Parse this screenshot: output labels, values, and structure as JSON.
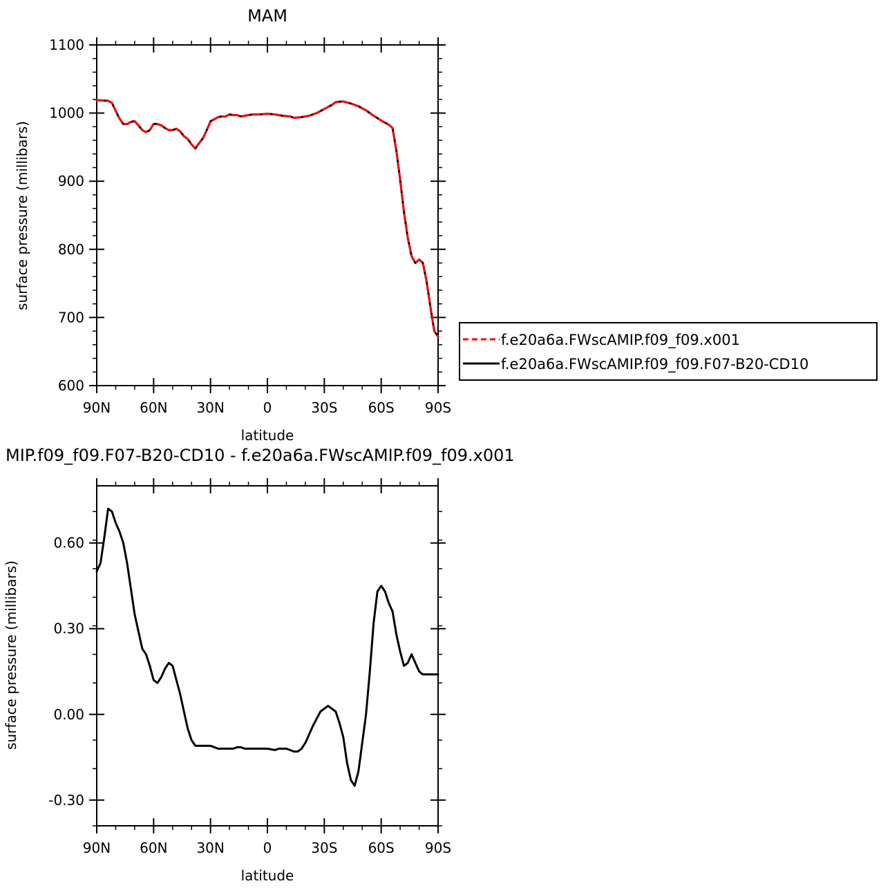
{
  "chart_data": [
    {
      "type": "line",
      "title": "MAM",
      "xlabel": "latitude",
      "ylabel": "surface pressure (millibars)",
      "xlim": [
        90,
        -90
      ],
      "ylim": [
        600,
        1100
      ],
      "xticks": [
        90,
        60,
        30,
        0,
        -30,
        -60,
        -90
      ],
      "xtick_labels": [
        "90N",
        "60N",
        "30N",
        "0",
        "30S",
        "60S",
        "90S"
      ],
      "yticks": [
        600,
        700,
        800,
        900,
        1000,
        1100
      ],
      "ytick_labels": [
        "600",
        "700",
        "800",
        "900",
        "1000",
        "1100"
      ],
      "grid": false,
      "legend": {
        "placement": "right",
        "entries": [
          {
            "name": "f.e20a6a.FWscAMIP.f09_f09.x001",
            "color": "#ff0000",
            "dash": "dashed"
          },
          {
            "name": "f.e20a6a.FWscAMIP.f09_f09.F07-B20-CD10",
            "color": "#000000",
            "dash": "solid"
          }
        ]
      },
      "series": [
        {
          "name": "f.e20a6a.FWscAMIP.f09_f09.x001",
          "color": "#ff0000",
          "dash": "dashed",
          "x": [
            90,
            84,
            82,
            80,
            78,
            76,
            74,
            72,
            70,
            68,
            66,
            64,
            62,
            60,
            58,
            56,
            54,
            52,
            50,
            48,
            46,
            44,
            42,
            40,
            38,
            36,
            34,
            32,
            30,
            28,
            26,
            24,
            22,
            20,
            18,
            16,
            14,
            12,
            10,
            8,
            4,
            0,
            -4,
            -8,
            -12,
            -14,
            -18,
            -22,
            -26,
            -30,
            -34,
            -36,
            -40,
            -44,
            -48,
            -52,
            -56,
            -60,
            -64,
            -66,
            -68,
            -70,
            -72,
            -74,
            -76,
            -78,
            -80,
            -82,
            -84,
            -86,
            -88,
            -90
          ],
          "values": [
            1019,
            1018,
            1015,
            1003,
            992,
            984,
            984,
            987,
            988,
            982,
            975,
            972,
            975,
            984,
            984,
            982,
            978,
            975,
            975,
            977,
            973,
            966,
            962,
            954,
            948,
            956,
            963,
            975,
            988,
            991,
            994,
            995,
            995,
            998,
            997,
            997,
            995,
            996,
            997,
            998,
            998,
            999,
            998,
            996,
            995,
            993,
            994,
            996,
            1000,
            1006,
            1012,
            1016,
            1017,
            1014,
            1010,
            1004,
            996,
            989,
            983,
            978,
            945,
            902,
            855,
            817,
            790,
            780,
            785,
            780,
            752,
            715,
            680,
            672
          ]
        },
        {
          "name": "f.e20a6a.FWscAMIP.f09_f09.F07-B20-CD10",
          "color": "#000000",
          "dash": "solid",
          "x": [
            90,
            84,
            82,
            80,
            78,
            76,
            74,
            72,
            70,
            68,
            66,
            64,
            62,
            60,
            58,
            56,
            54,
            52,
            50,
            48,
            46,
            44,
            42,
            40,
            38,
            36,
            34,
            32,
            30,
            28,
            26,
            24,
            22,
            20,
            18,
            16,
            14,
            12,
            10,
            8,
            4,
            0,
            -4,
            -8,
            -12,
            -14,
            -18,
            -22,
            -26,
            -30,
            -34,
            -36,
            -40,
            -44,
            -48,
            -52,
            -56,
            -60,
            -64,
            -66,
            -68,
            -70,
            -72,
            -74,
            -76,
            -78,
            -80,
            -82,
            -84,
            -86,
            -88,
            -90
          ],
          "values": [
            1019,
            1018,
            1015,
            1003,
            992,
            984,
            984,
            987,
            988,
            982,
            975,
            972,
            975,
            984,
            984,
            982,
            978,
            975,
            975,
            977,
            973,
            966,
            962,
            954,
            948,
            956,
            963,
            975,
            988,
            991,
            994,
            995,
            995,
            998,
            997,
            997,
            995,
            996,
            997,
            998,
            998,
            999,
            998,
            996,
            995,
            993,
            994,
            996,
            1000,
            1006,
            1012,
            1016,
            1017,
            1014,
            1010,
            1004,
            996,
            989,
            983,
            978,
            945,
            902,
            855,
            817,
            790,
            780,
            785,
            780,
            752,
            715,
            680,
            672
          ]
        }
      ]
    },
    {
      "type": "line",
      "title": "MIP.f09_f09.F07-B20-CD10 - f.e20a6a.FWscAMIP.f09_f09.x001",
      "xlabel": "latitude",
      "ylabel": "surface pressure (millibars)",
      "xlim": [
        90,
        -90
      ],
      "ylim": [
        -0.39,
        0.8
      ],
      "xticks": [
        90,
        60,
        30,
        0,
        -30,
        -60,
        -90
      ],
      "xtick_labels": [
        "90N",
        "60N",
        "30N",
        "0",
        "30S",
        "60S",
        "90S"
      ],
      "yticks": [
        -0.3,
        0.0,
        0.3,
        0.6
      ],
      "ytick_labels": [
        "-0.30",
        "0.00",
        "0.30",
        "0.60"
      ],
      "grid": false,
      "series": [
        {
          "color": "#000000",
          "x": [
            90,
            88,
            86,
            84,
            82,
            80,
            78,
            76,
            74,
            72,
            70,
            68,
            66,
            64,
            62,
            60,
            58,
            56,
            54,
            52,
            50,
            48,
            46,
            44,
            42,
            40,
            38,
            36,
            34,
            32,
            30,
            28,
            26,
            24,
            22,
            20,
            18,
            16,
            14,
            12,
            10,
            8,
            4,
            0,
            -4,
            -6,
            -8,
            -10,
            -12,
            -14,
            -16,
            -18,
            -20,
            -24,
            -28,
            -32,
            -36,
            -38,
            -40,
            -42,
            -44,
            -46,
            -48,
            -50,
            -52,
            -54,
            -56,
            -58,
            -60,
            -62,
            -64,
            -66,
            -68,
            -70,
            -72,
            -74,
            -76,
            -78,
            -80,
            -82,
            -84,
            -86,
            -88,
            -90
          ],
          "values": [
            0.5,
            0.53,
            0.62,
            0.72,
            0.71,
            0.67,
            0.64,
            0.6,
            0.53,
            0.44,
            0.35,
            0.29,
            0.23,
            0.21,
            0.17,
            0.12,
            0.11,
            0.13,
            0.16,
            0.18,
            0.17,
            0.12,
            0.07,
            0.01,
            -0.05,
            -0.09,
            -0.11,
            -0.11,
            -0.11,
            -0.11,
            -0.11,
            -0.115,
            -0.12,
            -0.12,
            -0.12,
            -0.12,
            -0.12,
            -0.115,
            -0.115,
            -0.12,
            -0.12,
            -0.12,
            -0.12,
            -0.12,
            -0.125,
            -0.12,
            -0.12,
            -0.12,
            -0.125,
            -0.13,
            -0.13,
            -0.12,
            -0.1,
            -0.04,
            0.01,
            0.03,
            0.01,
            -0.03,
            -0.08,
            -0.17,
            -0.23,
            -0.25,
            -0.2,
            -0.1,
            0.0,
            0.15,
            0.32,
            0.43,
            0.45,
            0.43,
            0.39,
            0.36,
            0.28,
            0.22,
            0.17,
            0.18,
            0.21,
            0.18,
            0.15,
            0.14,
            0.14,
            0.14,
            0.14,
            0.14
          ]
        }
      ]
    }
  ]
}
